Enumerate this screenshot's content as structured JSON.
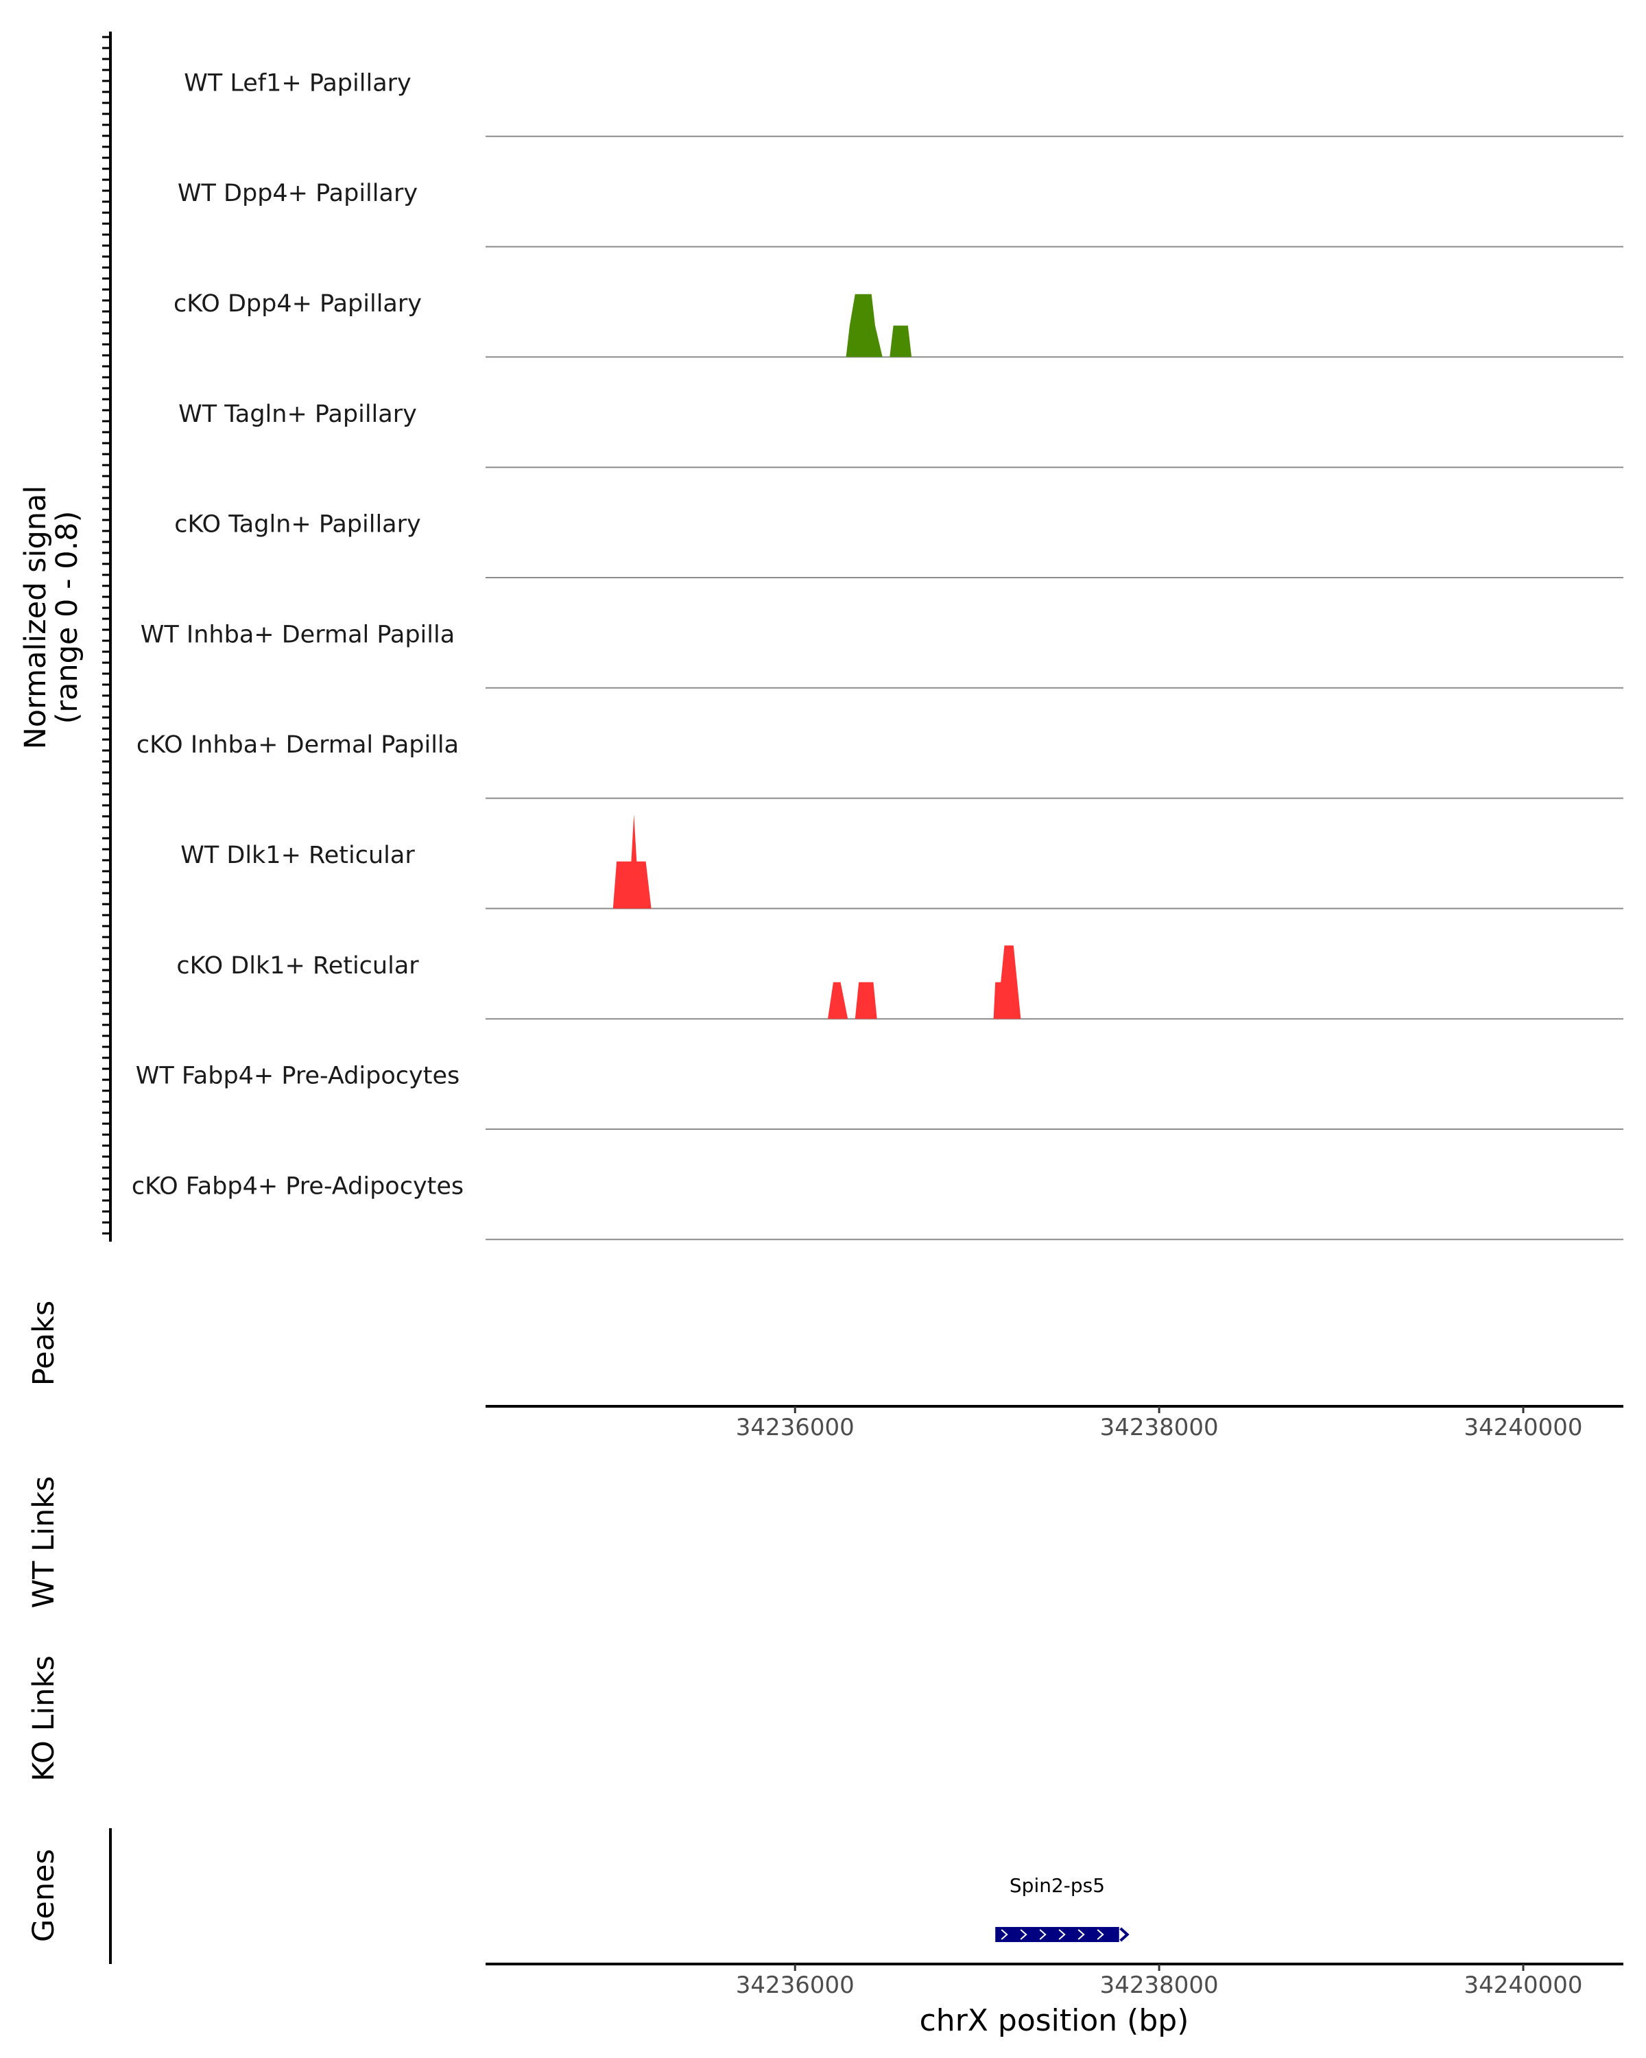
{
  "chart_data": {
    "type": "coverage-track",
    "chromosome": "chrX",
    "xlabel": "chrX position (bp)",
    "x_range": [
      34234300,
      34240550
    ],
    "x_ticks": [
      "34236000",
      "34238000",
      "34240000"
    ],
    "x_tick_values": [
      34236000,
      34238000,
      34240000
    ],
    "ylabel_line1": "Normalized signal",
    "ylabel_line2": "(range 0 - 0.8)",
    "y_range": [
      0,
      0.8
    ],
    "tracks": [
      {
        "name": "WT Lef1+ Papillary",
        "color": "#4a8a00",
        "peaks": []
      },
      {
        "name": "WT Dpp4+ Papillary",
        "color": "#4a8a00",
        "peaks": []
      },
      {
        "name": "cKO Dpp4+ Papillary",
        "color": "#4a8a00",
        "peaks": [
          {
            "x": [
              34236280,
              34236300,
              34236330,
              34236420,
              34236440,
              34236480
            ],
            "y": [
              0,
              0.3,
              0.6,
              0.6,
              0.3,
              0
            ]
          },
          {
            "x": [
              34236520,
              34236540,
              34236620,
              34236640
            ],
            "y": [
              0,
              0.3,
              0.3,
              0
            ]
          }
        ]
      },
      {
        "name": "WT Tagln+ Papillary",
        "color": "#4a8a00",
        "peaks": []
      },
      {
        "name": "cKO Tagln+ Papillary",
        "color": "#4a8a00",
        "peaks": []
      },
      {
        "name": "WT Inhba+ Dermal Papilla",
        "color": "#4a8a00",
        "peaks": []
      },
      {
        "name": "cKO Inhba+ Dermal Papilla",
        "color": "#4a8a00",
        "peaks": []
      },
      {
        "name": "WT Dlk1+ Reticular",
        "color": "#ff3333",
        "peaks": [
          {
            "x": [
              34235000,
              34235020,
              34235100,
              34235115,
              34235130,
              34235180,
              34235210
            ],
            "y": [
              0,
              0.45,
              0.45,
              0.9,
              0.45,
              0.45,
              0
            ]
          }
        ]
      },
      {
        "name": "cKO Dlk1+ Reticular",
        "color": "#ff3333",
        "peaks": [
          {
            "x": [
              34236180,
              34236210,
              34236250,
              34236290
            ],
            "y": [
              0,
              0.35,
              0.35,
              0
            ]
          },
          {
            "x": [
              34236330,
              34236350,
              34236430,
              34236450
            ],
            "y": [
              0,
              0.35,
              0.35,
              0
            ]
          },
          {
            "x": [
              34237090,
              34237100,
              34237130,
              34237150,
              34237200,
              34237220,
              34237240
            ],
            "y": [
              0,
              0.35,
              0.35,
              0.7,
              0.7,
              0.35,
              0
            ]
          }
        ]
      },
      {
        "name": "WT Fabp4+ Pre-Adipocytes",
        "color": "#ff3333",
        "peaks": []
      },
      {
        "name": "cKO Fabp4+ Pre-Adipocytes",
        "color": "#ff3333",
        "peaks": []
      }
    ],
    "lower_tracks": [
      "Peaks",
      "WT Links",
      "KO Links",
      "Genes"
    ],
    "genes": [
      {
        "name": "Spin2-ps5",
        "start": 34237100,
        "end": 34237780,
        "strand": "+",
        "color": "#000080"
      }
    ]
  }
}
